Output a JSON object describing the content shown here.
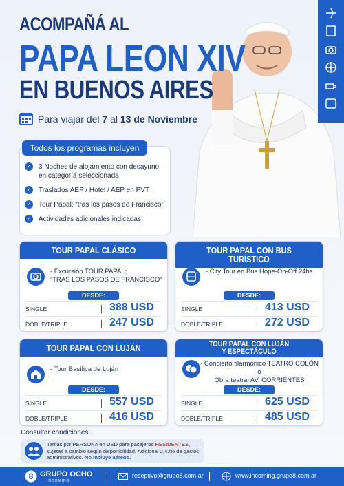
{
  "header": {
    "line1": "ACOMPAÑÁ AL",
    "line2": "PAPA LEON XIV",
    "line3": "EN BUENOS AIRES"
  },
  "dates": {
    "prefix": "Para viajar del",
    "start": "7",
    "middle": "al",
    "end": "13 de Noviembre"
  },
  "includes": {
    "title": "Todos los programas incluyen",
    "items": [
      "3 Noches de alojamiento con desayuno en categoría seleccionada",
      "Traslados AEP / Hotel / AEP en PVT",
      "Tour Papal; “tras los pasos de Francisco”",
      "Actividades adicionales indicadas"
    ]
  },
  "tours": [
    {
      "title": [
        "TOUR PAPAL CLÁSICO"
      ],
      "description": [
        "- Excursión TOUR PAPAL;",
        "“TRAS LOS PASOS DE FRANCISCO”"
      ],
      "from": "DESDE:",
      "rows": [
        {
          "label": "SINGLE",
          "price": "388 USD"
        },
        {
          "label": "DOBLE/TRIPLE",
          "price": "247 USD"
        }
      ]
    },
    {
      "title": [
        "TOUR PAPAL CON BUS TURÍSTICO"
      ],
      "description": [
        "- City Tour en Bus Hope-On-Off 24hs"
      ],
      "from": "DESDE:",
      "rows": [
        {
          "label": "SINGLE",
          "price": "413 USD"
        },
        {
          "label": "DOBLE/TRIPLE",
          "price": "272 USD"
        }
      ]
    },
    {
      "title": [
        "TOUR PAPAL CON LUJÁN"
      ],
      "description": [
        "- Tour Basílica de Luján"
      ],
      "from": "DESDE:",
      "rows": [
        {
          "label": "SINGLE",
          "price": "557 USD"
        },
        {
          "label": "DOBLE/TRIPLE",
          "price": "416 USD"
        }
      ]
    },
    {
      "title": [
        "TOUR PAPAL CON LUJÁN",
        "Y ESPECTÁCULO"
      ],
      "description": [
        "- Concierto filarmónico TEATRO COLÓN",
        "o",
        "Obra teatral AV. CORRIENTES"
      ],
      "from": "DESDE:",
      "rows": [
        {
          "label": "SINGLE",
          "price": "625 USD"
        },
        {
          "label": "DOBLE/TRIPLE",
          "price": "485 USD"
        }
      ]
    }
  ],
  "conditions": "Consultar condiciones.",
  "note": {
    "part1": "Tarifas por PERSONA en USD para pasajeros",
    "highlight": "RESIDENTES",
    "part2": ", sujetas a cambio según disponibilidad. Adicional 2,42% de gastos administrativos.",
    "bold": "No incluye aéreos."
  },
  "footer": {
    "brand": "GRUPO OCHO",
    "sub": "INCOMING",
    "email": "receptivo@grupo8.com.ar",
    "web": "www.incoming.grupo8.com.ar"
  }
}
